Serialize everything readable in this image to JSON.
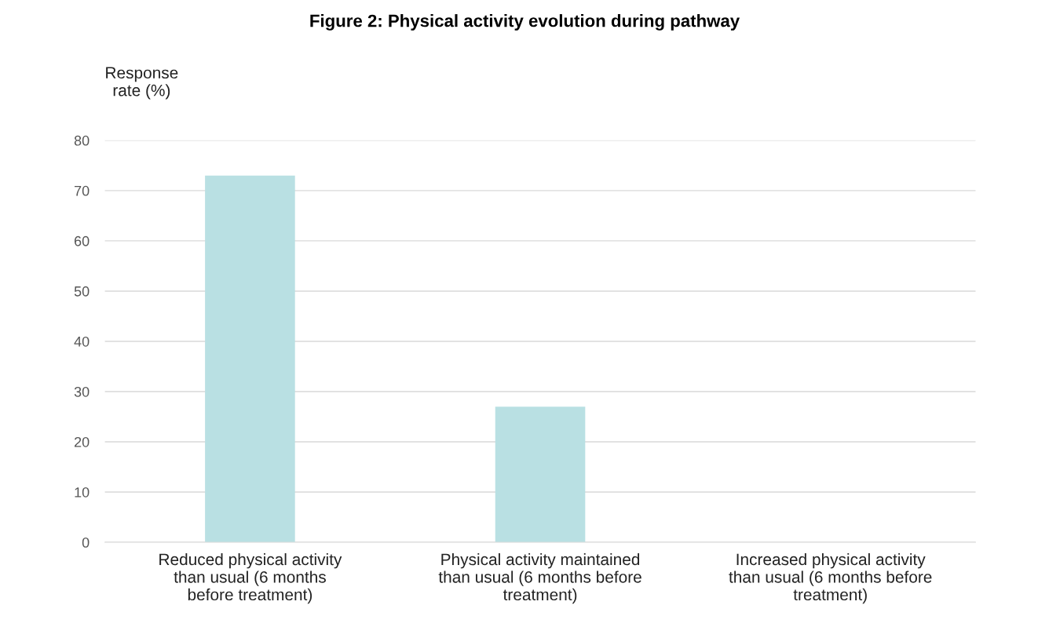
{
  "chart_data": {
    "type": "bar",
    "title": "Figure 2: Physical activity evolution during pathway",
    "ylabel": "Response\nrate (%)",
    "categories": [
      "Reduced physical activity\nthan usual (6 months\nbefore treatment)",
      "Physical activity maintained\nthan usual (6 months before\ntreatment)",
      "Increased physical activity\nthan usual (6 months before\ntreatment)"
    ],
    "values": [
      73,
      27,
      0
    ],
    "color": "#b9e0e3",
    "ylim": [
      0,
      80
    ],
    "yticks": [
      0,
      10,
      20,
      30,
      40,
      50,
      60,
      70,
      80
    ],
    "grid": "y"
  }
}
